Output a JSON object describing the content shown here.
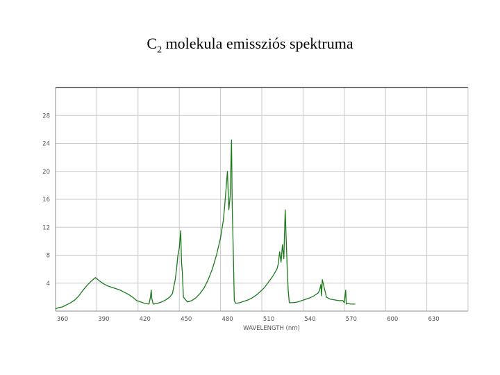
{
  "slide": {
    "title_main": "C",
    "title_sub": "2",
    "title_rest": " molekula emissziós spektruma"
  },
  "chart_data": {
    "type": "line",
    "title": "",
    "xlabel": "WAVELENGTH (nm)",
    "ylabel": "",
    "xlim": [
      360,
      660
    ],
    "ylim": [
      0,
      32
    ],
    "x_ticks": [
      360,
      390,
      420,
      450,
      480,
      510,
      540,
      570,
      600,
      630
    ],
    "x_tick_labels": [
      "360",
      "390",
      "420",
      "450",
      "480",
      "510",
      "540",
      "570",
      "600",
      "630"
    ],
    "y_ticks": [
      4,
      8,
      12,
      16,
      20,
      24,
      28
    ],
    "y_tick_labels": [
      "4",
      "8",
      "12",
      "16",
      "20",
      "24",
      "28"
    ],
    "grid": true,
    "line_color": "#1a7a1a",
    "series": [
      {
        "x": [
          360,
          362,
          365,
          368,
          371,
          374,
          377,
          380,
          383,
          386,
          389,
          392,
          395,
          398,
          401,
          404,
          407,
          410,
          413,
          416,
          419,
          422,
          425,
          428,
          429,
          429.6,
          430,
          431,
          434,
          437,
          440,
          443,
          445,
          446,
          447,
          448,
          449,
          450,
          451,
          451.6,
          452.2,
          453,
          456,
          459,
          462,
          465,
          468,
          471,
          474,
          477,
          480,
          482,
          483,
          484,
          485,
          486,
          487,
          488,
          488.5,
          489.2,
          490,
          491,
          494,
          497,
          500,
          503,
          506,
          509,
          512,
          515,
          518,
          521,
          522,
          523,
          524,
          525,
          526,
          527,
          528,
          528.5,
          529.2,
          530,
          533,
          536,
          539,
          542,
          545,
          548,
          551,
          552,
          553,
          553.5,
          554,
          557,
          560,
          563,
          566,
          569,
          570,
          571,
          571.4,
          572,
          575,
          578
        ],
        "y": [
          0.3,
          0.5,
          0.6,
          0.9,
          1.2,
          1.6,
          2.2,
          3.0,
          3.7,
          4.3,
          4.8,
          4.3,
          3.9,
          3.6,
          3.4,
          3.2,
          3.0,
          2.7,
          2.4,
          2.0,
          1.5,
          1.3,
          1.1,
          1.0,
          2.0,
          3.0,
          1.8,
          1.0,
          1.1,
          1.3,
          1.6,
          2.0,
          2.5,
          3.5,
          4.5,
          6.0,
          8.0,
          9.0,
          11.5,
          7.0,
          5.5,
          2.0,
          1.3,
          1.5,
          1.9,
          2.5,
          3.3,
          4.5,
          6.0,
          8.0,
          10.5,
          13.0,
          15.0,
          17.5,
          20.0,
          14.5,
          16.5,
          24.5,
          15.0,
          9.0,
          1.5,
          1.1,
          1.2,
          1.4,
          1.6,
          1.9,
          2.3,
          2.8,
          3.4,
          4.2,
          5.0,
          6.0,
          6.8,
          8.5,
          7.0,
          9.5,
          7.5,
          14.5,
          9.0,
          6.0,
          3.0,
          1.2,
          1.2,
          1.3,
          1.5,
          1.7,
          1.9,
          2.2,
          2.6,
          3.0,
          3.8,
          2.2,
          4.5,
          2.0,
          1.7,
          1.6,
          1.5,
          1.5,
          1.2,
          3.0,
          1.0,
          1.1,
          1.0,
          1.0
        ]
      }
    ]
  }
}
